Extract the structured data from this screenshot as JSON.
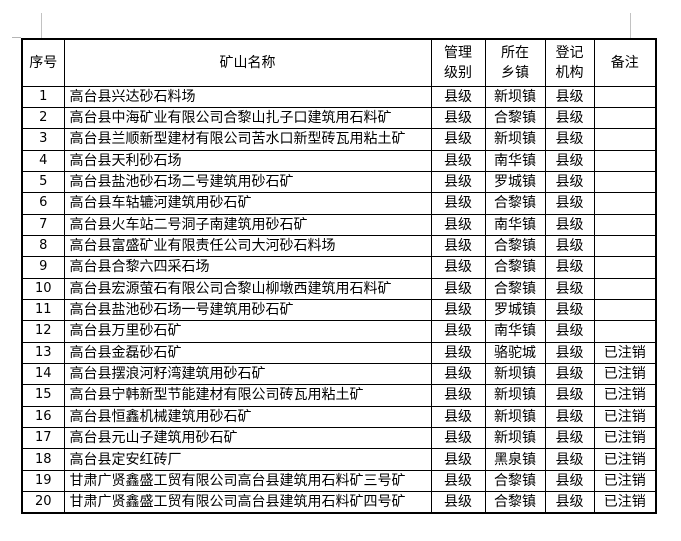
{
  "colors": {
    "page_background": "#ffffff",
    "table_border": "#000000",
    "text": "#000000",
    "margin_guide": "#c2c2c2"
  },
  "table": {
    "headers": [
      {
        "id": "no",
        "label": "序号"
      },
      {
        "id": "name",
        "label": "矿山名称"
      },
      {
        "id": "level",
        "label": "管理\n级别"
      },
      {
        "id": "town",
        "label": "所在\n乡镇"
      },
      {
        "id": "agency",
        "label": "登记\n机构"
      },
      {
        "id": "note",
        "label": "备注"
      }
    ],
    "rows": [
      {
        "no": "1",
        "name": "高台县兴达砂石料场",
        "level": "县级",
        "town": "新坝镇",
        "agency": "县级",
        "note": ""
      },
      {
        "no": "2",
        "name": "高台县中海矿业有限公司合黎山扎子口建筑用石料矿",
        "level": "县级",
        "town": "合黎镇",
        "agency": "县级",
        "note": ""
      },
      {
        "no": "3",
        "name": "高台县兰顺新型建材有限公司苦水口新型砖瓦用粘土矿",
        "level": "县级",
        "town": "新坝镇",
        "agency": "县级",
        "note": ""
      },
      {
        "no": "4",
        "name": "高台县天利砂石场",
        "level": "县级",
        "town": "南华镇",
        "agency": "县级",
        "note": ""
      },
      {
        "no": "5",
        "name": "高台县盐池砂石场二号建筑用砂石矿",
        "level": "县级",
        "town": "罗城镇",
        "agency": "县级",
        "note": ""
      },
      {
        "no": "6",
        "name": "高台县车轱辘河建筑用砂石矿",
        "level": "县级",
        "town": "合黎镇",
        "agency": "县级",
        "note": ""
      },
      {
        "no": "7",
        "name": "高台县火车站二号洞子南建筑用砂石矿",
        "level": "县级",
        "town": "南华镇",
        "agency": "县级",
        "note": ""
      },
      {
        "no": "8",
        "name": "高台县富盛矿业有限责任公司大河砂石料场",
        "level": "县级",
        "town": "合黎镇",
        "agency": "县级",
        "note": ""
      },
      {
        "no": "9",
        "name": "高台县合黎六四采石场",
        "level": "县级",
        "town": "合黎镇",
        "agency": "县级",
        "note": ""
      },
      {
        "no": "10",
        "name": "高台县宏源萤石有限公司合黎山柳墩西建筑用石料矿",
        "level": "县级",
        "town": "合黎镇",
        "agency": "县级",
        "note": ""
      },
      {
        "no": "11",
        "name": "高台县盐池砂石场一号建筑用砂石矿",
        "level": "县级",
        "town": "罗城镇",
        "agency": "县级",
        "note": ""
      },
      {
        "no": "12",
        "name": "高台县万里砂石矿",
        "level": "县级",
        "town": "南华镇",
        "agency": "县级",
        "note": ""
      },
      {
        "no": "13",
        "name": "高台县金磊砂石矿",
        "level": "县级",
        "town": "骆驼城",
        "agency": "县级",
        "note": "已注销"
      },
      {
        "no": "14",
        "name": "高台县摆浪河籽湾建筑用砂石矿",
        "level": "县级",
        "town": "新坝镇",
        "agency": "县级",
        "note": "已注销"
      },
      {
        "no": "15",
        "name": "高台县宁韩新型节能建材有限公司砖瓦用粘土矿",
        "level": "县级",
        "town": "新坝镇",
        "agency": "县级",
        "note": "已注销"
      },
      {
        "no": "16",
        "name": "高台县恒鑫机械建筑用砂石矿",
        "level": "县级",
        "town": "新坝镇",
        "agency": "县级",
        "note": "已注销"
      },
      {
        "no": "17",
        "name": "高台县元山子建筑用砂石矿",
        "level": "县级",
        "town": "新坝镇",
        "agency": "县级",
        "note": "已注销"
      },
      {
        "no": "18",
        "name": "高台县定安红砖厂",
        "level": "县级",
        "town": "黑泉镇",
        "agency": "县级",
        "note": "已注销"
      },
      {
        "no": "19",
        "name": "甘肃广贤鑫盛工贸有限公司高台县建筑用石料矿三号矿",
        "level": "县级",
        "town": "合黎镇",
        "agency": "县级",
        "note": "已注销"
      },
      {
        "no": "20",
        "name": "甘肃广贤鑫盛工贸有限公司高台县建筑用石料矿四号矿",
        "level": "县级",
        "town": "合黎镇",
        "agency": "县级",
        "note": "已注销"
      }
    ]
  }
}
